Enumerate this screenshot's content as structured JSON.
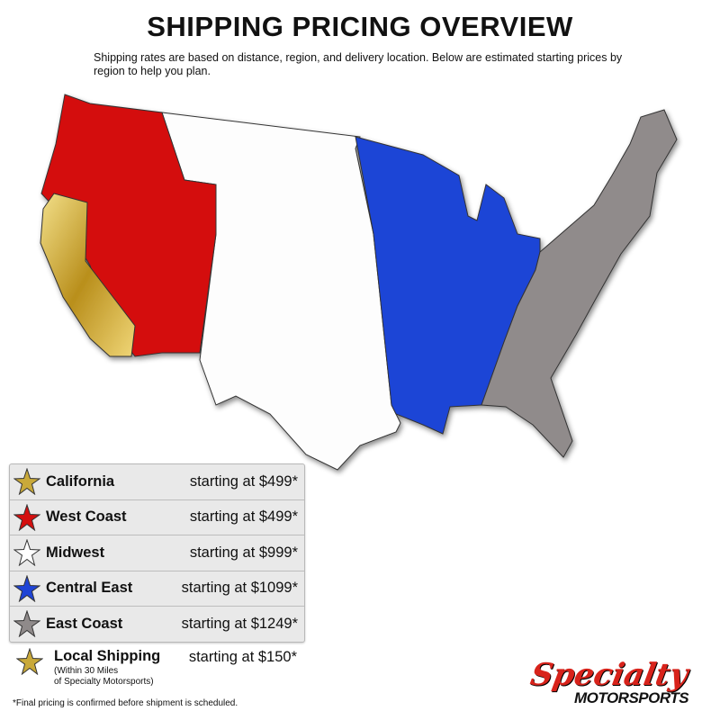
{
  "title": "SHIPPING PRICING OVERVIEW",
  "intro": "Shipping rates are based on distance, region, and delivery location. Below are estimated starting prices by region to help you plan.",
  "colors": {
    "california": "#c9a93a",
    "west_coast": "#d40f0f",
    "midwest": "#ffffff",
    "central_east": "#1f44d6",
    "east_coast": "#8f8a8a",
    "local": "#c9a93a"
  },
  "regions": [
    {
      "name": "California",
      "price": "starting at $499*",
      "color": "#c9a93a"
    },
    {
      "name": "West Coast",
      "price": "starting at $499*",
      "color": "#d40f0f"
    },
    {
      "name": "Midwest",
      "price": "starting at $999*",
      "color": "#ffffff"
    },
    {
      "name": "Central East",
      "price": "starting at $1099*",
      "color": "#1f44d6"
    },
    {
      "name": "East Coast",
      "price": "starting at $1249*",
      "color": "#8f8a8a"
    }
  ],
  "local": {
    "name": "Local Shipping",
    "sub1": "(Within 30 Miles",
    "sub2": "of Specialty Motorsports)",
    "price": "starting at $150*",
    "color": "#c9a93a"
  },
  "footnote": "*Final pricing is confirmed before shipment is scheduled.",
  "logo": {
    "script": "Specialty",
    "sub": "MOTORSPORTS"
  }
}
